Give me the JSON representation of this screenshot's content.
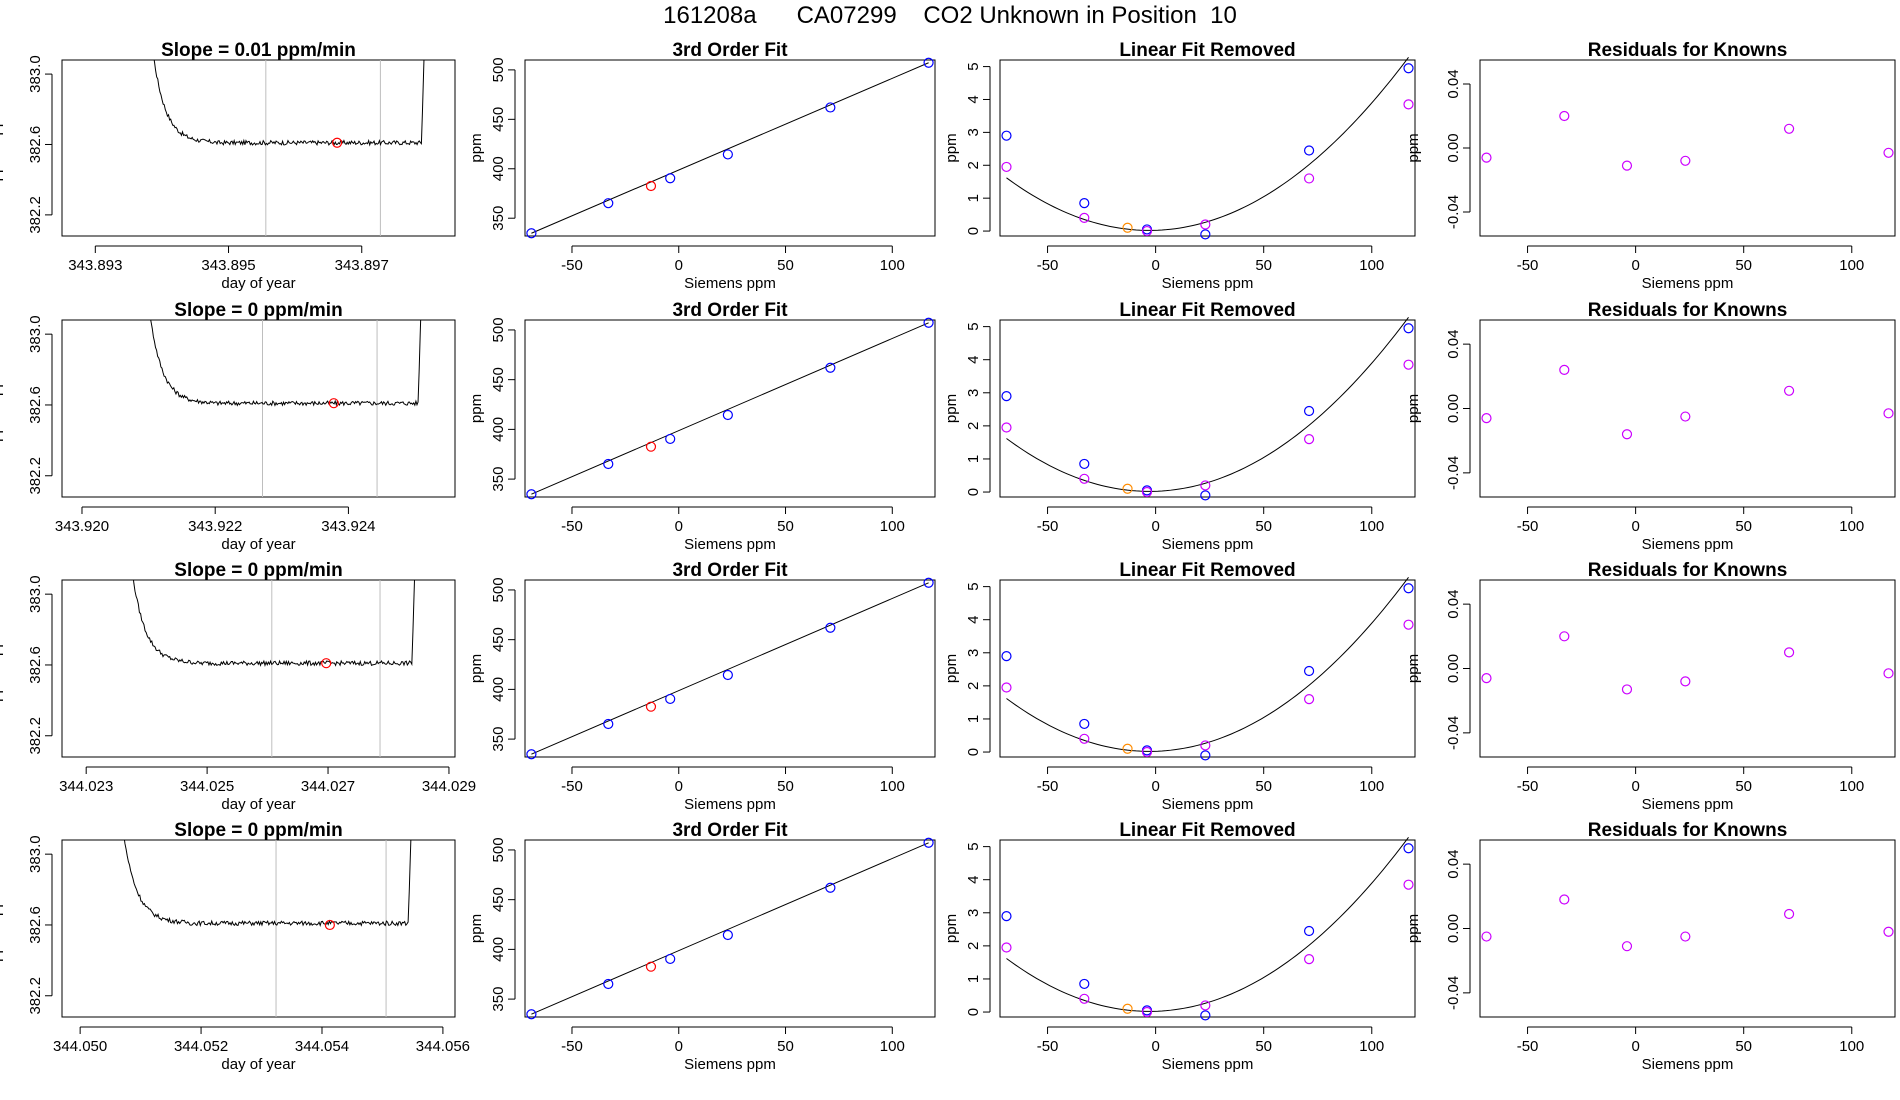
{
  "title": "161208a      CA07299    CO2 Unknown in Position  10",
  "colors": {
    "known": "#0000ff",
    "unknown": "#ff0000",
    "unknown_lin": "#ff8c00",
    "residual": "#cc00ff",
    "curve": "#000000",
    "vline": "#bebebe"
  },
  "row_titles": [
    "Slope =  0.01  ppm/min",
    "Slope =  0  ppm/min",
    "Slope =  0  ppm/min",
    "Slope =  0  ppm/min"
  ],
  "col_titles": {
    "fit": "3rd Order Fit",
    "lin": "Linear Fit Removed",
    "res": "Residuals for Knowns"
  },
  "labels": {
    "day_of_year": "day of year",
    "approx_ppm": "approx. ppm",
    "siemens_ppm": "Siemens ppm",
    "ppm": "ppm"
  },
  "chart_data": [
    {
      "type": "line",
      "panel": "time-trace",
      "xlabel": "day of year",
      "ylabel": "approx. ppm",
      "rows": [
        {
          "xticks": [
            "343.893",
            "343.895",
            "343.897"
          ],
          "xtick_values": [
            343.893,
            343.895,
            343.897
          ],
          "xlim": [
            343.8925,
            343.8984
          ],
          "x_start": 343.89376,
          "x_end": 343.89796,
          "vlines": [
            343.89556,
            343.89728
          ],
          "unknown_point": {
            "x": 343.89663,
            "y": 382.61
          }
        },
        {
          "xticks": [
            "343.920",
            "343.922",
            "343.924"
          ],
          "xtick_values": [
            343.92,
            343.922,
            343.924
          ],
          "xlim": [
            343.9197,
            343.9256
          ],
          "x_start": 343.92091,
          "x_end": 343.92511,
          "vlines": [
            343.92271,
            343.92443
          ],
          "unknown_point": {
            "x": 343.92378,
            "y": 382.61
          }
        },
        {
          "xticks": [
            "344.023",
            "344.025",
            "344.027",
            "344.029"
          ],
          "xtick_values": [
            344.023,
            344.025,
            344.027,
            344.029
          ],
          "xlim": [
            344.0226,
            344.0291
          ],
          "x_start": 344.02364,
          "x_end": 344.02846,
          "vlines": [
            344.02607,
            344.02786
          ],
          "unknown_point": {
            "x": 344.02697,
            "y": 382.61
          }
        },
        {
          "xticks": [
            "344.050",
            "344.052",
            "344.054",
            "344.056"
          ],
          "xtick_values": [
            344.05,
            344.052,
            344.054,
            344.056
          ],
          "xlim": [
            344.0497,
            344.0562
          ],
          "x_start": 344.05059,
          "x_end": 344.0555,
          "vlines": [
            344.05324,
            344.05506
          ],
          "unknown_point": {
            "x": 344.05413,
            "y": 382.6
          }
        }
      ],
      "yticks": [
        "382.2",
        "382.6",
        "383.0"
      ],
      "ytick_values": [
        382.2,
        382.6,
        383.0
      ],
      "ylim": [
        382.08,
        383.08
      ],
      "plateau_ppm": 382.61
    },
    {
      "type": "scatter",
      "panel": "3rd-order-fit",
      "title": "3rd Order Fit",
      "xlabel": "Siemens ppm",
      "ylabel": "ppm",
      "xlim": [
        -72,
        120
      ],
      "ylim": [
        332,
        510
      ],
      "xticks": [
        "-50",
        "0",
        "50",
        "100"
      ],
      "xtick_values": [
        -50,
        0,
        50,
        100
      ],
      "yticks": [
        "350",
        "400",
        "450",
        "500"
      ],
      "ytick_values": [
        350,
        400,
        450,
        500
      ],
      "knowns": {
        "x": [
          -69,
          -33,
          -4,
          23,
          71,
          117
        ],
        "y": [
          334.8,
          365.2,
          390.4,
          414.5,
          462.0,
          507.2
        ]
      },
      "unknown": {
        "x": -13,
        "y": 382.6
      },
      "curve": "fit through knowns"
    },
    {
      "type": "scatter",
      "panel": "linear-fit-removed",
      "title": "Linear Fit Removed",
      "xlabel": "Siemens ppm",
      "ylabel": "ppm",
      "xlim": [
        -72,
        120
      ],
      "ylim": [
        -0.15,
        5.2
      ],
      "xticks": [
        "-50",
        "0",
        "50",
        "100"
      ],
      "xtick_values": [
        -50,
        0,
        50,
        100
      ],
      "yticks": [
        "0",
        "1",
        "2",
        "3",
        "4",
        "5"
      ],
      "ytick_values": [
        0,
        1,
        2,
        3,
        4,
        5
      ],
      "knowns": {
        "x": [
          -69,
          -33,
          -4,
          23,
          71,
          117
        ],
        "y": [
          2.9,
          0.85,
          0.05,
          -0.1,
          2.45,
          4.95
        ]
      },
      "second_set": {
        "x": [
          -69,
          -33,
          -4,
          23,
          71,
          117
        ],
        "y": [
          1.95,
          0.4,
          0.0,
          0.2,
          1.6,
          3.85
        ]
      },
      "unknown": {
        "x": -13,
        "y": 0.1
      },
      "curve_fn": "0.000366*(x+3)^2 - 0.00007*(x+3) + 0.02"
    },
    {
      "type": "scatter",
      "panel": "residuals",
      "title": "Residuals for Knowns",
      "xlabel": "Siemens ppm",
      "ylabel": "ppm",
      "xlim": [
        -72,
        120
      ],
      "ylim": [
        -0.055,
        0.055
      ],
      "xticks": [
        "-50",
        "0",
        "50",
        "100"
      ],
      "xtick_values": [
        -50,
        0,
        50,
        100
      ],
      "yticks": [
        "-0.04",
        "0.00",
        "0.04"
      ],
      "ytick_values": [
        -0.04,
        0.0,
        0.04
      ],
      "rows": [
        {
          "x": [
            -69,
            -33,
            -4,
            23,
            71,
            117
          ],
          "y": [
            -0.006,
            0.02,
            -0.011,
            -0.008,
            0.012,
            -0.003
          ]
        },
        {
          "x": [
            -69,
            -33,
            -4,
            23,
            71,
            117
          ],
          "y": [
            -0.006,
            0.024,
            -0.016,
            -0.005,
            0.011,
            -0.003
          ]
        },
        {
          "x": [
            -69,
            -33,
            -4,
            23,
            71,
            117
          ],
          "y": [
            -0.006,
            0.02,
            -0.013,
            -0.008,
            0.01,
            -0.003
          ]
        },
        {
          "x": [
            -69,
            -33,
            -4,
            23,
            71,
            117
          ],
          "y": [
            -0.005,
            0.018,
            -0.011,
            -0.005,
            0.009,
            -0.002
          ]
        }
      ]
    }
  ]
}
